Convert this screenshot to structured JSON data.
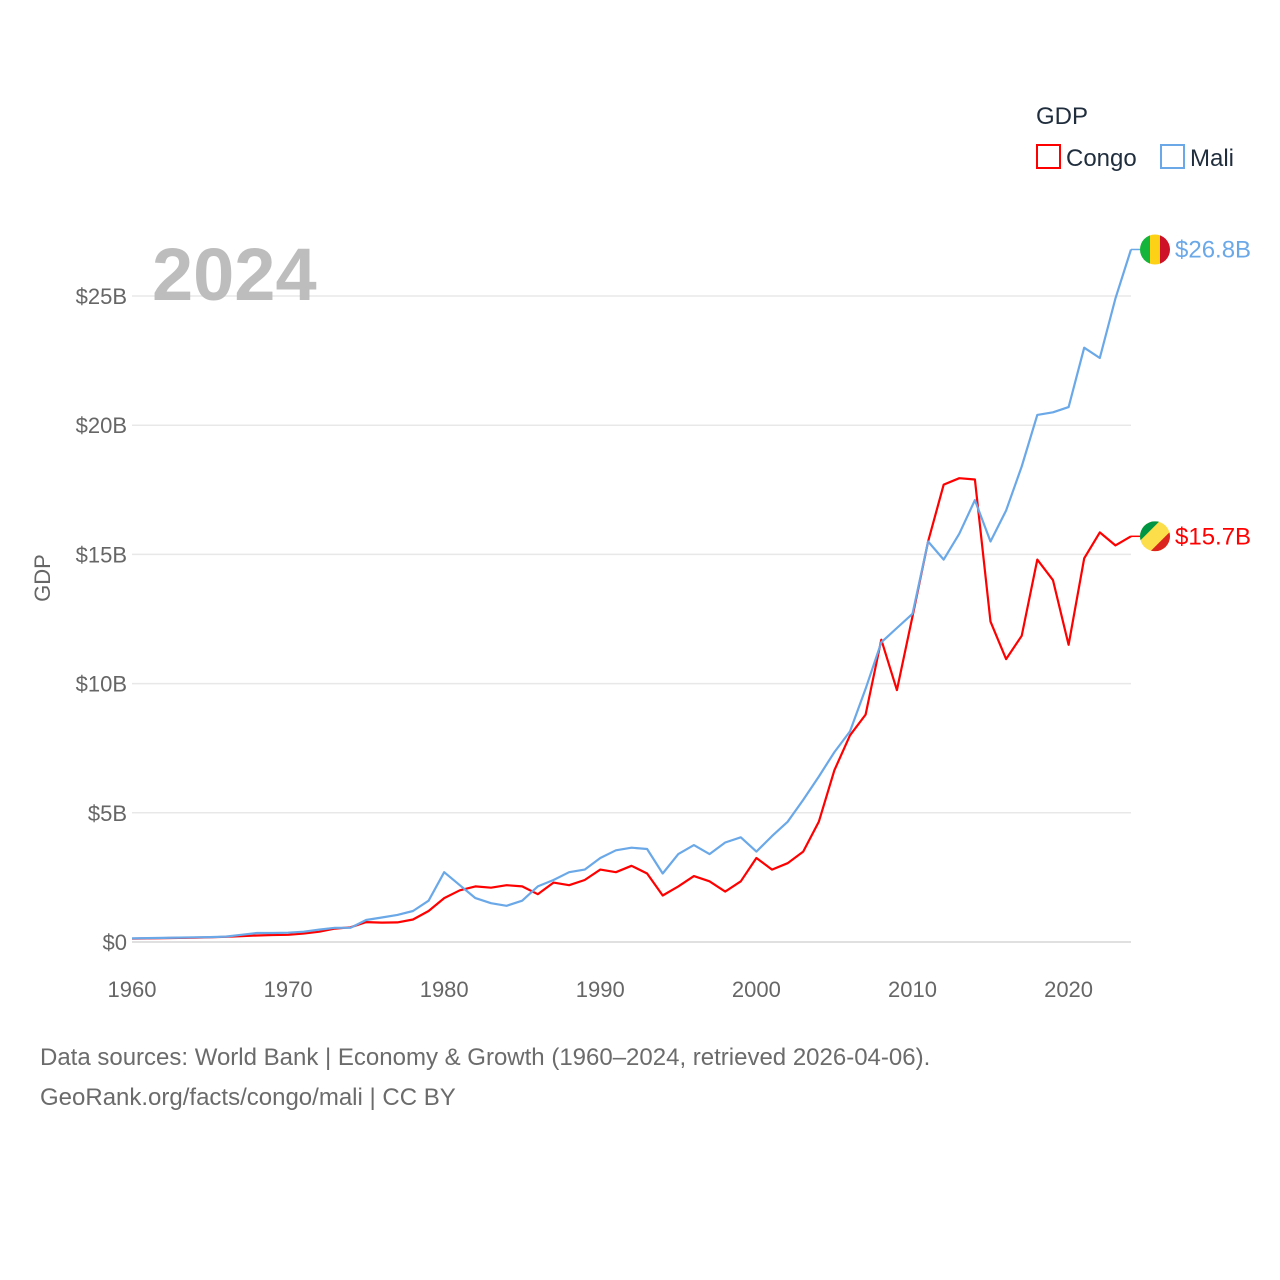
{
  "chart_data": {
    "type": "line",
    "legend_title": "GDP",
    "ylabel": "GDP",
    "year_label": "2024",
    "xlim": [
      1960,
      2024
    ],
    "ylim": [
      0,
      27500000000
    ],
    "x_ticks": [
      {
        "value": 1960,
        "label": "1960"
      },
      {
        "value": 1970,
        "label": "1970"
      },
      {
        "value": 1980,
        "label": "1980"
      },
      {
        "value": 1990,
        "label": "1990"
      },
      {
        "value": 2000,
        "label": "2000"
      },
      {
        "value": 2010,
        "label": "2010"
      },
      {
        "value": 2020,
        "label": "2020"
      }
    ],
    "y_ticks": [
      {
        "value": 0,
        "label": "$0"
      },
      {
        "value": 5000000000,
        "label": "$5B"
      },
      {
        "value": 10000000000,
        "label": "$10B"
      },
      {
        "value": 15000000000,
        "label": "$15B"
      },
      {
        "value": 20000000000,
        "label": "$20B"
      },
      {
        "value": 25000000000,
        "label": "$25B"
      }
    ],
    "x": [
      1960,
      1961,
      1962,
      1963,
      1964,
      1965,
      1966,
      1967,
      1968,
      1969,
      1970,
      1971,
      1972,
      1973,
      1974,
      1975,
      1976,
      1977,
      1978,
      1979,
      1980,
      1981,
      1982,
      1983,
      1984,
      1985,
      1986,
      1987,
      1988,
      1989,
      1990,
      1991,
      1992,
      1993,
      1994,
      1995,
      1996,
      1997,
      1998,
      1999,
      2000,
      2001,
      2002,
      2003,
      2004,
      2005,
      2006,
      2007,
      2008,
      2009,
      2010,
      2011,
      2012,
      2013,
      2014,
      2015,
      2016,
      2017,
      2018,
      2019,
      2020,
      2021,
      2022,
      2023,
      2024
    ],
    "series": [
      {
        "name": "Congo",
        "color": "#ff0000",
        "end_label": "$15.7B",
        "flag": "congo-flag",
        "values": [
          0.13,
          0.14,
          0.15,
          0.16,
          0.17,
          0.18,
          0.2,
          0.23,
          0.25,
          0.27,
          0.28,
          0.33,
          0.4,
          0.52,
          0.57,
          0.77,
          0.75,
          0.76,
          0.87,
          1.2,
          1.7,
          2.0,
          2.15,
          2.1,
          2.2,
          2.15,
          1.85,
          2.3,
          2.2,
          2.4,
          2.8,
          2.7,
          2.95,
          2.65,
          1.8,
          2.15,
          2.55,
          2.35,
          1.95,
          2.35,
          3.25,
          2.8,
          3.05,
          3.5,
          4.65,
          6.65,
          8.0,
          8.8,
          11.7,
          9.75,
          12.6,
          15.5,
          17.7,
          17.95,
          17.9,
          12.4,
          10.95,
          11.85,
          14.8,
          14.0,
          11.5,
          14.85,
          15.85,
          15.35,
          15.7
        ]
      },
      {
        "name": "Mali",
        "color": "#6aa8e8",
        "end_label": "$26.8B",
        "flag": "mali-flag",
        "values": [
          0.14,
          0.15,
          0.16,
          0.17,
          0.18,
          0.19,
          0.21,
          0.28,
          0.35,
          0.35,
          0.36,
          0.4,
          0.48,
          0.55,
          0.55,
          0.85,
          0.95,
          1.05,
          1.2,
          1.6,
          2.7,
          2.2,
          1.7,
          1.5,
          1.4,
          1.6,
          2.15,
          2.4,
          2.7,
          2.8,
          3.25,
          3.55,
          3.65,
          3.6,
          2.65,
          3.4,
          3.75,
          3.4,
          3.85,
          4.05,
          3.5,
          4.1,
          4.65,
          5.5,
          6.4,
          7.35,
          8.15,
          9.8,
          11.6,
          12.15,
          12.7,
          15.5,
          14.8,
          15.8,
          17.1,
          15.5,
          16.7,
          18.4,
          20.4,
          20.5,
          20.7,
          23.0,
          22.6,
          24.9,
          26.8
        ]
      }
    ]
  },
  "footer": {
    "line1": "Data sources: World Bank | Economy & Growth (1960–2024, retrieved 2026-04-06).",
    "line2": "GeoRank.org/facts/congo/mali | CC BY"
  }
}
